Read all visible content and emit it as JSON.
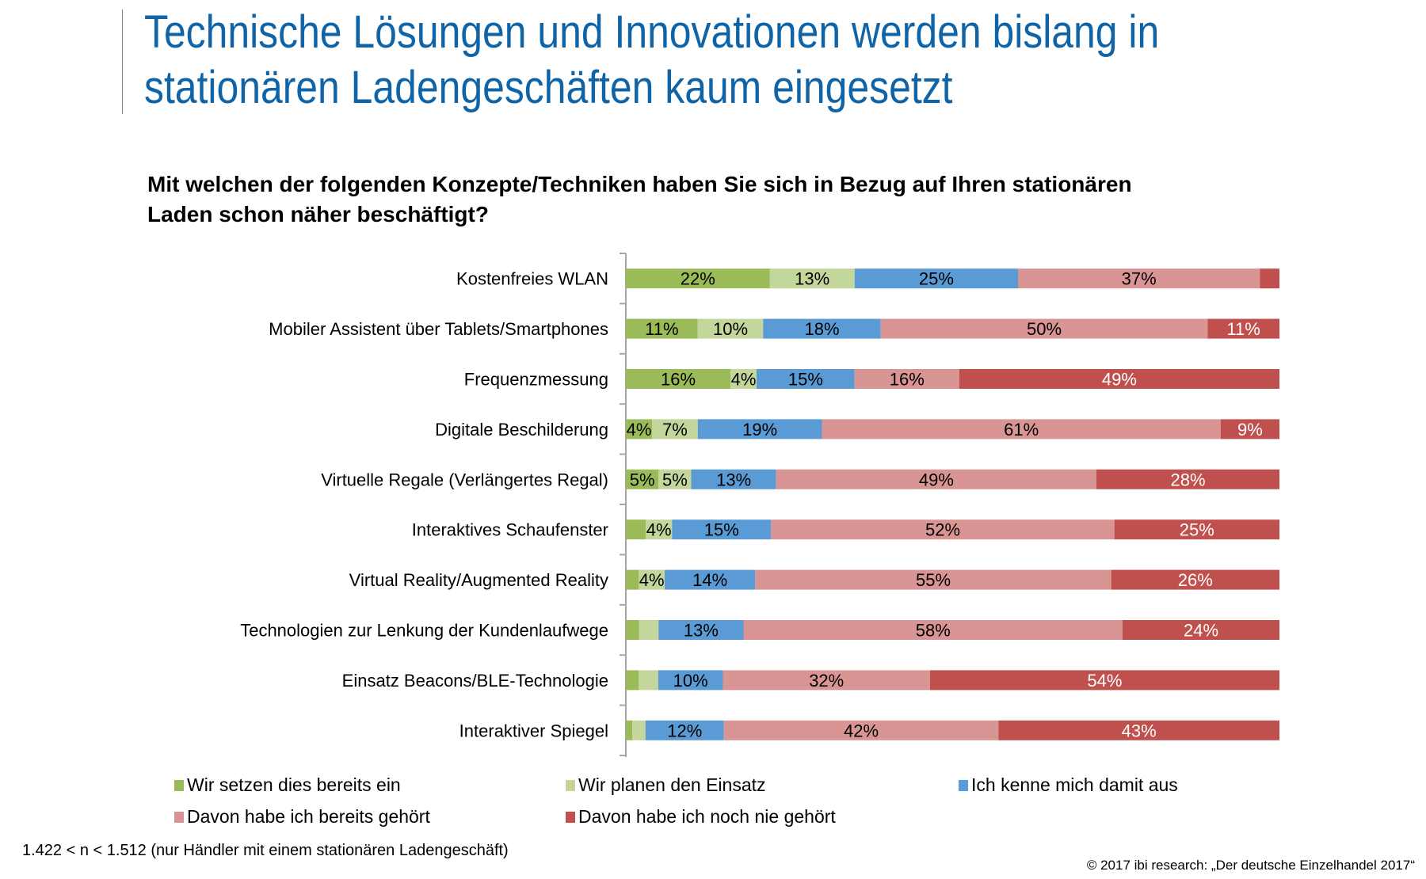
{
  "page": {
    "title_line1": "Technische Lösungen und Innovationen werden bislang in",
    "title_line2": "stationären Ladengeschäften kaum eingesetzt",
    "question_line1": "Mit welchen der folgenden Konzepte/Techniken haben Sie sich in Bezug auf Ihren stationären",
    "question_line2": "Laden schon näher beschäftigt?",
    "footnote": "1.422 < n < 1.512 (nur Händler mit einem stationären Ladengeschäft)",
    "copyright": "© 2017 ibi research: „Der deutsche Einzelhandel 2017“"
  },
  "chart_data": {
    "type": "bar",
    "orientation": "horizontal",
    "stacked": true,
    "percent_stacked": true,
    "title": "Mit welchen der folgenden Konzepte/Techniken haben Sie sich in Bezug auf Ihren stationären Laden schon näher beschäftigt?",
    "xlabel": "",
    "ylabel": "",
    "xlim": [
      0,
      100
    ],
    "grid": false,
    "legend_position": "bottom",
    "categories": [
      "Kostenfreies WLAN",
      "Mobiler Assistent über Tablets/Smartphones",
      "Frequenzmessung",
      "Digitale Beschilderung",
      "Virtuelle Regale (Verlängertes Regal)",
      "Interaktives Schaufenster",
      "Virtual Reality/Augmented Reality",
      "Technologien zur Lenkung der Kundenlaufwege",
      "Einsatz Beacons/BLE-Technologie",
      "Interaktiver Spiegel"
    ],
    "series": [
      {
        "name": "Wir setzen dies bereits ein",
        "color": "#9bbb59",
        "label_color": "#000000",
        "values": [
          22,
          11,
          16,
          4,
          5,
          3,
          2,
          2,
          2,
          1
        ],
        "labels": [
          "22%",
          "11%",
          "16%",
          "4%",
          "5%",
          "",
          "",
          "",
          "",
          ""
        ]
      },
      {
        "name": "Wir planen den Einsatz",
        "color": "#c3d69b",
        "label_color": "#000000",
        "values": [
          13,
          10,
          4,
          7,
          5,
          4,
          4,
          3,
          3,
          2
        ],
        "labels": [
          "13%",
          "10%",
          "4%",
          "7%",
          "5%",
          "4%",
          "4%",
          "",
          "",
          ""
        ]
      },
      {
        "name": "Ich kenne mich damit aus",
        "color": "#5b9bd5",
        "label_color": "#000000",
        "values": [
          25,
          18,
          15,
          19,
          13,
          15,
          14,
          13,
          10,
          12
        ],
        "labels": [
          "25%",
          "18%",
          "15%",
          "19%",
          "13%",
          "15%",
          "14%",
          "13%",
          "10%",
          "12%"
        ]
      },
      {
        "name": "Davon habe ich bereits gehört",
        "color": "#d99594",
        "label_color": "#000000",
        "values": [
          37,
          50,
          16,
          61,
          49,
          52,
          55,
          58,
          32,
          42
        ],
        "labels": [
          "37%",
          "50%",
          "16%",
          "61%",
          "49%",
          "52%",
          "55%",
          "58%",
          "32%",
          "42%"
        ]
      },
      {
        "name": "Davon habe ich noch nie gehört",
        "color": "#c0504d",
        "label_color": "#ffffff",
        "values": [
          3,
          11,
          49,
          9,
          28,
          25,
          26,
          24,
          54,
          43
        ],
        "labels": [
          "",
          "11%",
          "49%",
          "9%",
          "28%",
          "25%",
          "26%",
          "24%",
          "54%",
          "43%"
        ]
      }
    ]
  }
}
